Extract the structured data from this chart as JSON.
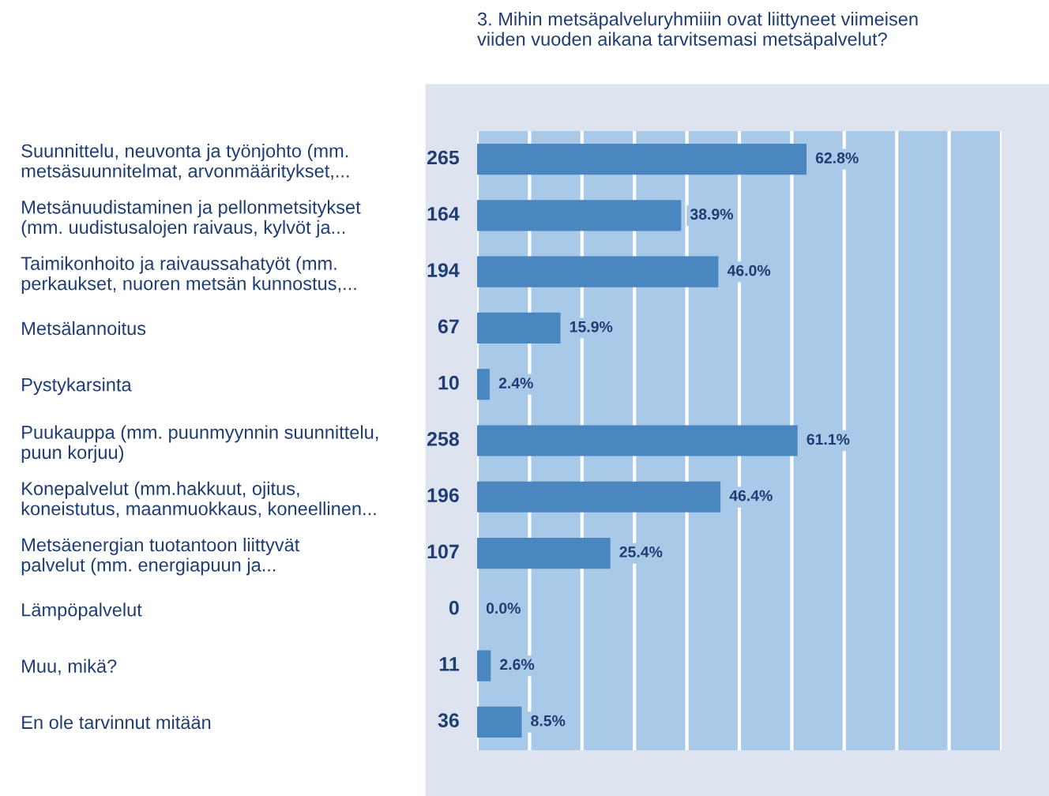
{
  "chart_data": {
    "type": "bar",
    "orientation": "horizontal",
    "title": "3. Mihin metsäpalveluryhmiiin ovat liittyneet viimeisen\nviiden vuoden aikana tarvitsemasi metsäpalvelut?",
    "categories": [
      "Suunnittelu, neuvonta ja työnjohto (mm.\nmetsäsuunnitelmat, arvonmääritykset,...",
      "Metsänuudistaminen ja pellonmetsitykset\n(mm. uudistusalojen raivaus, kylvöt ja...",
      "Taimikonhoito ja raivaussahatyöt (mm.\nperkaukset, nuoren metsän kunnostus,...",
      "Metsälannoitus",
      "Pystykarsinta",
      "Puukauppa (mm. puunmyynnin suunnittelu,\npuun korjuu)",
      "Konepalvelut (mm.hakkuut, ojitus,\nkoneistutus, maanmuokkaus, koneellinen...",
      "Metsäenergian tuotantoon liittyvät\npalvelut (mm. energiapuun ja...",
      "Lämpöpalvelut",
      "Muu, mikä?",
      "En ole tarvinnut mitään"
    ],
    "values": [
      62.8,
      38.9,
      46.0,
      15.9,
      2.4,
      61.1,
      46.4,
      25.4,
      0.0,
      2.6,
      8.5
    ],
    "value_labels": [
      "62.8%",
      "38.9%",
      "46.0%",
      "15.9%",
      "2.4%",
      "61.1%",
      "46.4%",
      "25.4%",
      "0.0%",
      "2.6%",
      "8.5%"
    ],
    "color": "#4a86c0",
    "xlim": [
      0,
      100
    ],
    "xticks": [
      {
        "value": 0,
        "label": null
      },
      {
        "value": 10,
        "label": null
      },
      {
        "value": 20,
        "label": null
      },
      {
        "value": 30,
        "label": null
      },
      {
        "value": 40,
        "label": null
      },
      {
        "value": 50,
        "label": null
      },
      {
        "value": 60,
        "label": null
      },
      {
        "value": 70,
        "label": null
      },
      {
        "value": 80,
        "label": null
      },
      {
        "value": 90,
        "label": null
      },
      {
        "value": 100,
        "label": null
      }
    ],
    "tick_labels": "y",
    "grid": "x",
    "annotations": [
      "265",
      "164",
      "194",
      "67",
      "10",
      "258",
      "196",
      "107",
      "0",
      "11",
      "36"
    ]
  }
}
